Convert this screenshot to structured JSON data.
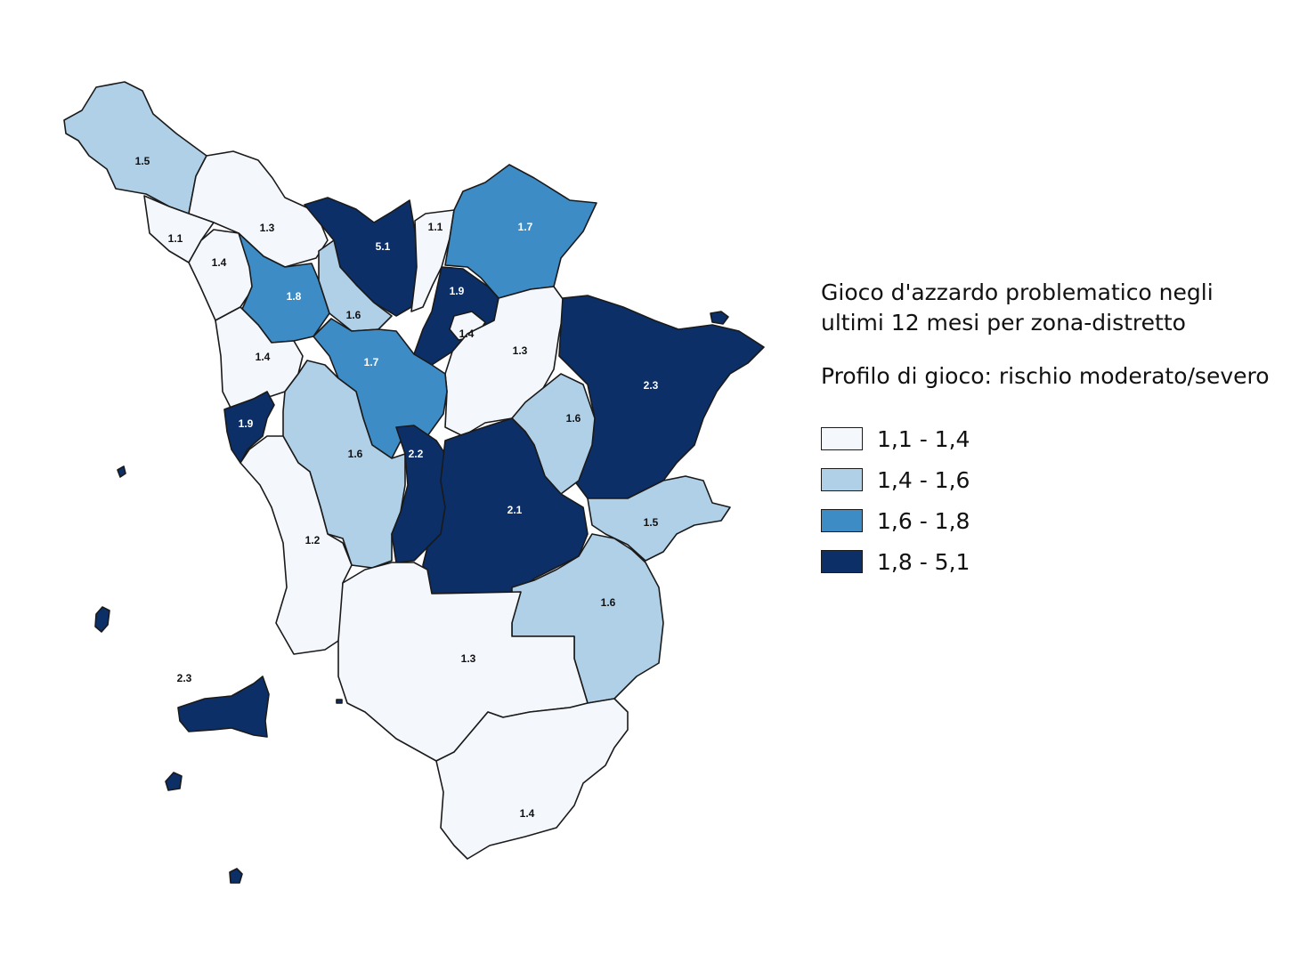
{
  "legend": {
    "title_line1": "Gioco d'azzardo problematico negli",
    "title_line2": "ultimi 12 mesi per zona-distretto",
    "subtitle": "Profilo di gioco: rischio moderato/severo",
    "classes": [
      {
        "label": "1,1 - 1,4",
        "color": "#f4f8fd"
      },
      {
        "label": "1,4 - 1,6",
        "color": "#b0d0e8"
      },
      {
        "label": "1,6 - 1,8",
        "color": "#3e8cc6"
      },
      {
        "label": "1,8 - 5,1",
        "color": "#0c2f68"
      }
    ]
  },
  "zones": [
    {
      "id": "lunigiana",
      "value": "1.5",
      "class": 1
    },
    {
      "id": "apuane",
      "value": "1.3",
      "class": 0
    },
    {
      "id": "versilia-north",
      "value": "1.1",
      "class": 0
    },
    {
      "id": "versilia",
      "value": "1.4",
      "class": 0
    },
    {
      "id": "valle-serchio",
      "value": "5.1",
      "class": 3
    },
    {
      "id": "pistoia",
      "value": "1.1",
      "class": 0
    },
    {
      "id": "mugello",
      "value": "1.7",
      "class": 2
    },
    {
      "id": "piana-lucca",
      "value": "1.8",
      "class": 2
    },
    {
      "id": "valdinievole",
      "value": "1.6",
      "class": 1
    },
    {
      "id": "prato",
      "value": "1.9",
      "class": 3
    },
    {
      "id": "prato-inner",
      "value": "1.4",
      "class": 0
    },
    {
      "id": "firenze",
      "value": "1.3",
      "class": 0
    },
    {
      "id": "casentino",
      "value": "2.3",
      "class": 3
    },
    {
      "id": "pisa",
      "value": "1.4",
      "class": 0
    },
    {
      "id": "empolese",
      "value": "1.7",
      "class": 2
    },
    {
      "id": "valdarno",
      "value": "1.6",
      "class": 1
    },
    {
      "id": "livorno",
      "value": "1.9",
      "class": 3
    },
    {
      "id": "alta-val-cecina",
      "value": "1.6",
      "class": 1
    },
    {
      "id": "alta-val-elsa",
      "value": "2.2",
      "class": 3
    },
    {
      "id": "senese",
      "value": "2.1",
      "class": 3
    },
    {
      "id": "aretina",
      "value": "1.5",
      "class": 1
    },
    {
      "id": "valdichiana",
      "value": "1.6",
      "class": 1
    },
    {
      "id": "bassa-val-cecina",
      "value": "1.2",
      "class": 0
    },
    {
      "id": "colline-metallifere",
      "value": "1.3",
      "class": 0
    },
    {
      "id": "amiata-grossetana",
      "value": "1.4",
      "class": 0
    },
    {
      "id": "elba",
      "value": "2.3",
      "class": 3
    }
  ]
}
